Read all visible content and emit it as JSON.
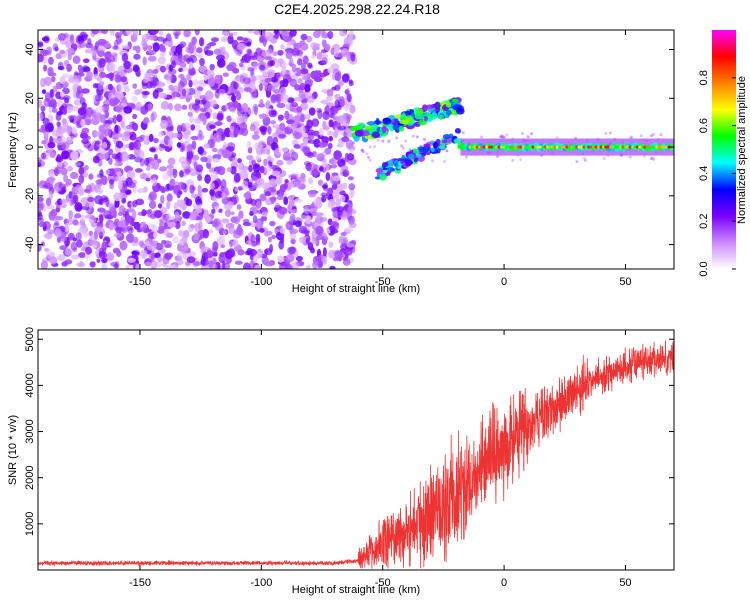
{
  "title": "C2E4.2025.298.22.24.R18",
  "chart_data": [
    {
      "type": "heatmap",
      "xlabel": "Height of straight line (km)",
      "ylabel": "Frequency (Hz)",
      "xlim": [
        -192,
        70
      ],
      "ylim": [
        -50,
        48
      ],
      "xticks": [
        -150,
        -100,
        -50,
        0,
        50
      ],
      "xtick_labels": [
        "-150",
        "-100",
        "-50",
        "0",
        "50"
      ],
      "yticks": [
        -40,
        -20,
        0,
        20,
        40
      ],
      "ytick_labels": [
        "-40",
        "-20",
        "0",
        "20",
        "40"
      ],
      "colorbar": {
        "label": "Normalized spectral amplitude",
        "range": [
          0,
          1
        ],
        "ticks": [
          0.0,
          0.2,
          0.4,
          0.6,
          0.8
        ],
        "tick_labels": [
          "0.0",
          "0.2",
          "0.4",
          "0.6",
          "0.8"
        ],
        "colors": [
          "#ffffff",
          "#cc88ff",
          "#7a00ff",
          "#0000ff",
          "#00ffff",
          "#00ff00",
          "#ffff00",
          "#ff7f00",
          "#ff0000",
          "#ff00ff"
        ]
      },
      "regions": [
        {
          "name": "noise",
          "x": [
            -192,
            -62
          ],
          "y": [
            -50,
            48
          ],
          "amplitude": 0.15
        },
        {
          "name": "upper-band",
          "x": [
            -62,
            -18
          ],
          "y_start": 5,
          "y_end": 17,
          "amplitude": 0.45
        },
        {
          "name": "lower-band",
          "x": [
            -52,
            -18
          ],
          "y_start": -11,
          "y_end": 5,
          "amplitude": 0.4
        },
        {
          "name": "carrier",
          "x": [
            -18,
            70
          ],
          "y": 0,
          "amplitude": 0.9
        }
      ]
    },
    {
      "type": "line",
      "xlabel": "Height of straight line (km)",
      "ylabel": "SNR (10 * v/v)",
      "xlim": [
        -192,
        70
      ],
      "ylim": [
        0,
        5200
      ],
      "xticks": [
        -150,
        -100,
        -50,
        0,
        50
      ],
      "xtick_labels": [
        "-150",
        "-100",
        "-50",
        "0",
        "50"
      ],
      "yticks": [
        1000,
        2000,
        3000,
        4000,
        5000
      ],
      "ytick_labels": [
        "1000",
        "2000",
        "3000",
        "4000",
        "5000"
      ],
      "color": "#ee3333",
      "trend": {
        "x": [
          -192,
          -70,
          -60,
          -50,
          -40,
          -30,
          -20,
          -15,
          -10,
          0,
          10,
          20,
          30,
          40,
          50,
          60,
          70
        ],
        "y": [
          150,
          150,
          200,
          600,
          850,
          1150,
          1550,
          1900,
          2250,
          2650,
          3100,
          3500,
          3900,
          4200,
          4400,
          4550,
          4600
        ]
      }
    }
  ]
}
